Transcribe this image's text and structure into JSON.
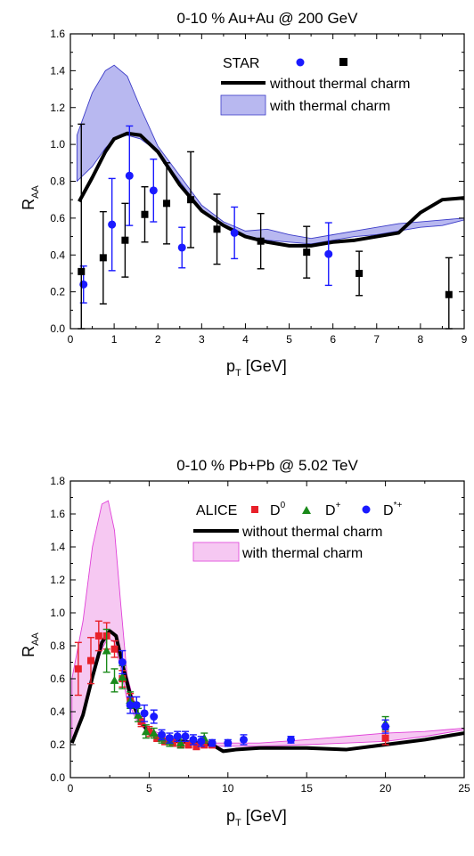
{
  "chart_data": [
    {
      "type": "line",
      "title": "0-10 % Au+Au @ 200 GeV",
      "xlabel_main": "p",
      "xlabel_sub": "T",
      "xlabel_unit": " [GeV]",
      "ylabel_main": "R",
      "ylabel_sub": "AA",
      "xlim": [
        0,
        9
      ],
      "ylim": [
        0,
        1.6
      ],
      "xticks": [
        "0",
        "1",
        "2",
        "3",
        "4",
        "5",
        "6",
        "7",
        "8",
        "9"
      ],
      "yticks": [
        "0.0",
        "0.2",
        "0.4",
        "0.6",
        "0.8",
        "1.0",
        "1.2",
        "1.4",
        "1.6"
      ],
      "legend": {
        "experiment": "STAR",
        "line_label": "without thermal charm",
        "band_label": "with thermal charm"
      },
      "colors": {
        "band_fill": "#b8b8f0",
        "band_edge": "#3c3cc8",
        "line": "#000000",
        "blue": "#1a1aff",
        "black": "#000000"
      },
      "series": [
        {
          "kind": "line",
          "x": [
            0.2,
            0.5,
            0.8,
            1.0,
            1.3,
            1.6,
            2.0,
            2.5,
            3.0,
            3.5,
            4.0,
            4.5,
            5.0,
            5.5,
            6.0,
            6.5,
            7.0,
            7.5,
            8.0,
            8.5,
            9.0
          ],
          "y": [
            0.69,
            0.82,
            0.96,
            1.03,
            1.06,
            1.05,
            0.96,
            0.78,
            0.64,
            0.56,
            0.5,
            0.47,
            0.45,
            0.45,
            0.47,
            0.48,
            0.5,
            0.52,
            0.63,
            0.7,
            0.71
          ]
        },
        {
          "kind": "band",
          "x": [
            0.15,
            0.5,
            0.8,
            1.0,
            1.3,
            1.6,
            2.0,
            2.5,
            3.0,
            3.5,
            4.0,
            4.5,
            5.0,
            5.5,
            6.0,
            6.5,
            7.0,
            7.5,
            8.0,
            8.5,
            9.0
          ],
          "upper": [
            1.05,
            1.28,
            1.4,
            1.43,
            1.37,
            1.2,
            0.99,
            0.83,
            0.67,
            0.58,
            0.53,
            0.54,
            0.51,
            0.49,
            0.51,
            0.53,
            0.55,
            0.57,
            0.58,
            0.59,
            0.6
          ],
          "lower": [
            0.8,
            0.88,
            0.98,
            1.03,
            1.05,
            1.03,
            0.96,
            0.8,
            0.64,
            0.56,
            0.5,
            0.48,
            0.47,
            0.46,
            0.48,
            0.5,
            0.51,
            0.53,
            0.55,
            0.56,
            0.59
          ]
        },
        {
          "kind": "points",
          "marker": "circle",
          "color": "blue",
          "x": [
            0.3,
            0.95,
            1.35,
            1.9,
            2.55,
            3.75,
            5.9
          ],
          "y": [
            0.24,
            0.565,
            0.83,
            0.75,
            0.44,
            0.52,
            0.405
          ],
          "err": [
            0.1,
            0.25,
            0.27,
            0.17,
            0.11,
            0.14,
            0.17
          ]
        },
        {
          "kind": "points",
          "marker": "square",
          "color": "black",
          "x": [
            0.25,
            0.75,
            1.25,
            1.7,
            2.2,
            2.75,
            3.35,
            4.35,
            5.4,
            6.6,
            8.65
          ],
          "y": [
            0.31,
            0.385,
            0.48,
            0.62,
            0.68,
            0.7,
            0.54,
            0.475,
            0.415,
            0.3,
            0.185
          ],
          "err": [
            0.8,
            0.25,
            0.2,
            0.15,
            0.22,
            0.26,
            0.19,
            0.15,
            0.14,
            0.12,
            0.2
          ]
        }
      ]
    },
    {
      "type": "line",
      "title": "0-10 % Pb+Pb @ 5.02 TeV",
      "xlabel_main": "p",
      "xlabel_sub": "T",
      "xlabel_unit": " [GeV]",
      "ylabel_main": "R",
      "ylabel_sub": "AA",
      "xlim": [
        0,
        25
      ],
      "ylim": [
        0,
        1.8
      ],
      "xticks": [
        "0",
        "5",
        "10",
        "15",
        "20",
        "25"
      ],
      "yticks": [
        "0.0",
        "0.2",
        "0.4",
        "0.6",
        "0.8",
        "1.0",
        "1.2",
        "1.4",
        "1.6",
        "1.8"
      ],
      "legend": {
        "experiment": "ALICE",
        "d0": "D",
        "d0_sup": "0",
        "dplus": "D",
        "dplus_sup": "+",
        "dstar": "D",
        "dstar_sup": "*+",
        "line_label": "without thermal charm",
        "band_label": "with thermal charm"
      },
      "colors": {
        "band_fill": "#f6c8f2",
        "band_edge": "#e040d8",
        "line": "#000000",
        "red": "#e8202a",
        "green": "#1a8a1a",
        "blue": "#1a1aff"
      },
      "series": [
        {
          "kind": "line",
          "x": [
            0.1,
            0.8,
            1.4,
            2.0,
            2.5,
            2.9,
            3.3,
            3.8,
            4.3,
            5.0,
            6.0,
            7.0,
            8.0,
            9.0,
            9.7,
            10.5,
            12.0,
            15.0,
            17.5,
            20.0,
            22.5,
            25.0
          ],
          "y": [
            0.21,
            0.38,
            0.61,
            0.82,
            0.89,
            0.86,
            0.69,
            0.5,
            0.37,
            0.27,
            0.23,
            0.22,
            0.21,
            0.2,
            0.16,
            0.17,
            0.18,
            0.18,
            0.17,
            0.2,
            0.23,
            0.27
          ]
        },
        {
          "kind": "band",
          "x": [
            0.1,
            0.8,
            1.4,
            2.0,
            2.4,
            2.8,
            3.2,
            3.6,
            4.2,
            5.0,
            6.0,
            7.0,
            8.0,
            9.0,
            10.0,
            12.0,
            15.0,
            17.5,
            20.0,
            22.5,
            25.0
          ],
          "upper": [
            0.6,
            0.95,
            1.4,
            1.66,
            1.68,
            1.5,
            1.05,
            0.62,
            0.4,
            0.3,
            0.25,
            0.23,
            0.22,
            0.21,
            0.21,
            0.21,
            0.23,
            0.25,
            0.27,
            0.28,
            0.3
          ],
          "lower": [
            0.21,
            0.37,
            0.6,
            0.78,
            0.85,
            0.82,
            0.66,
            0.47,
            0.35,
            0.26,
            0.22,
            0.21,
            0.2,
            0.19,
            0.19,
            0.19,
            0.2,
            0.21,
            0.22,
            0.25,
            0.29
          ]
        },
        {
          "kind": "points",
          "marker": "square",
          "color": "red",
          "x": [
            0.5,
            1.3,
            1.8,
            2.3,
            2.8,
            3.3,
            3.8,
            4.5,
            5.0,
            5.5,
            6.0,
            6.5,
            7.0,
            7.5,
            8.0,
            8.5,
            9.0,
            20.0
          ],
          "y": [
            0.66,
            0.71,
            0.86,
            0.86,
            0.78,
            0.6,
            0.47,
            0.34,
            0.28,
            0.24,
            0.22,
            0.21,
            0.2,
            0.2,
            0.19,
            0.2,
            0.2,
            0.24
          ],
          "err": [
            0.16,
            0.14,
            0.09,
            0.08,
            0.05,
            0.05,
            0.04,
            0.03,
            0.03,
            0.02,
            0.02,
            0.02,
            0.02,
            0.02,
            0.02,
            0.02,
            0.02,
            0.04
          ]
        },
        {
          "kind": "points",
          "marker": "triangle",
          "color": "green",
          "x": [
            2.3,
            2.8,
            3.3,
            3.8,
            4.3,
            4.8,
            5.3,
            5.8,
            6.3,
            7.0,
            8.5,
            20.0
          ],
          "y": [
            0.77,
            0.59,
            0.61,
            0.47,
            0.38,
            0.28,
            0.27,
            0.24,
            0.22,
            0.21,
            0.24,
            0.33
          ],
          "err": [
            0.13,
            0.07,
            0.07,
            0.05,
            0.04,
            0.04,
            0.03,
            0.03,
            0.03,
            0.03,
            0.03,
            0.04
          ]
        },
        {
          "kind": "points",
          "marker": "circle",
          "color": "blue",
          "x": [
            3.3,
            3.8,
            4.2,
            4.7,
            5.3,
            5.8,
            6.3,
            6.8,
            7.3,
            7.8,
            8.3,
            9.0,
            10.0,
            11.0,
            14.0,
            20.0
          ],
          "y": [
            0.7,
            0.44,
            0.44,
            0.39,
            0.37,
            0.26,
            0.24,
            0.25,
            0.25,
            0.23,
            0.22,
            0.21,
            0.21,
            0.23,
            0.23,
            0.31
          ],
          "err": [
            0.07,
            0.05,
            0.05,
            0.05,
            0.04,
            0.03,
            0.03,
            0.03,
            0.03,
            0.03,
            0.03,
            0.02,
            0.02,
            0.03,
            0.02,
            0.04
          ]
        }
      ]
    }
  ]
}
